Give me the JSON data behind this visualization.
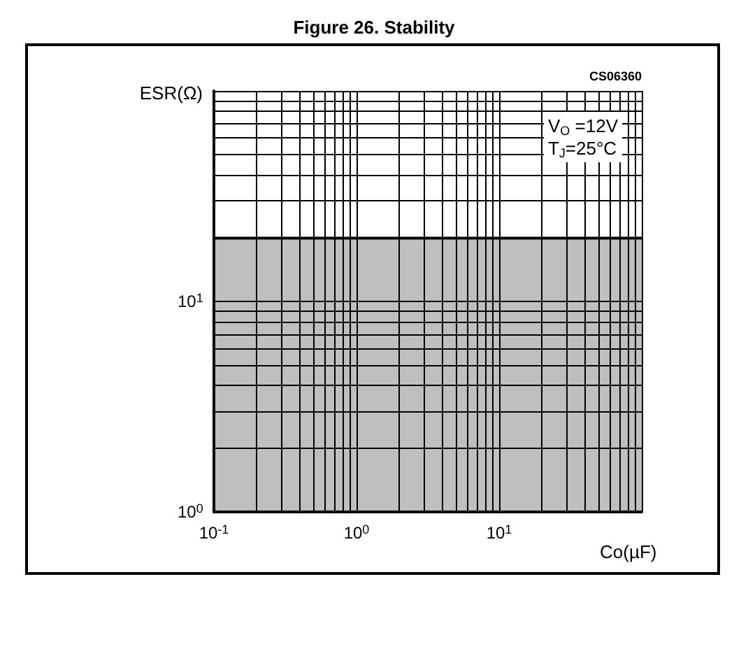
{
  "chart_data": {
    "type": "area",
    "title": "Figure 26. Stability",
    "xlabel": "Co(µF)",
    "ylabel": "ESR(Ω)",
    "annotations": [
      "V$_{O}$ =12V",
      "T$_{J}$=25°C",
      "CS06360"
    ],
    "x": [
      0.1,
      100
    ],
    "series": [
      {
        "color": "#000000",
        "values": [
          20,
          20
        ]
      }
    ],
    "log": "xy",
    "xlim": [
      0.1,
      100
    ],
    "ylim": [
      1,
      100
    ],
    "xticks": [
      {
        "value": 0.1,
        "label": "10$^{-1}$"
      },
      {
        "value": 1,
        "label": "10$^{0}$"
      },
      {
        "value": 10,
        "label": "10$^{1}$"
      },
      {
        "value": 100,
        "label": null
      }
    ],
    "yticks": [
      {
        "value": 1,
        "label": "10$^{0}$"
      },
      {
        "value": 10,
        "label": "10$^{1}$"
      },
      {
        "value": 100,
        "label": null
      }
    ],
    "grid": true
  }
}
